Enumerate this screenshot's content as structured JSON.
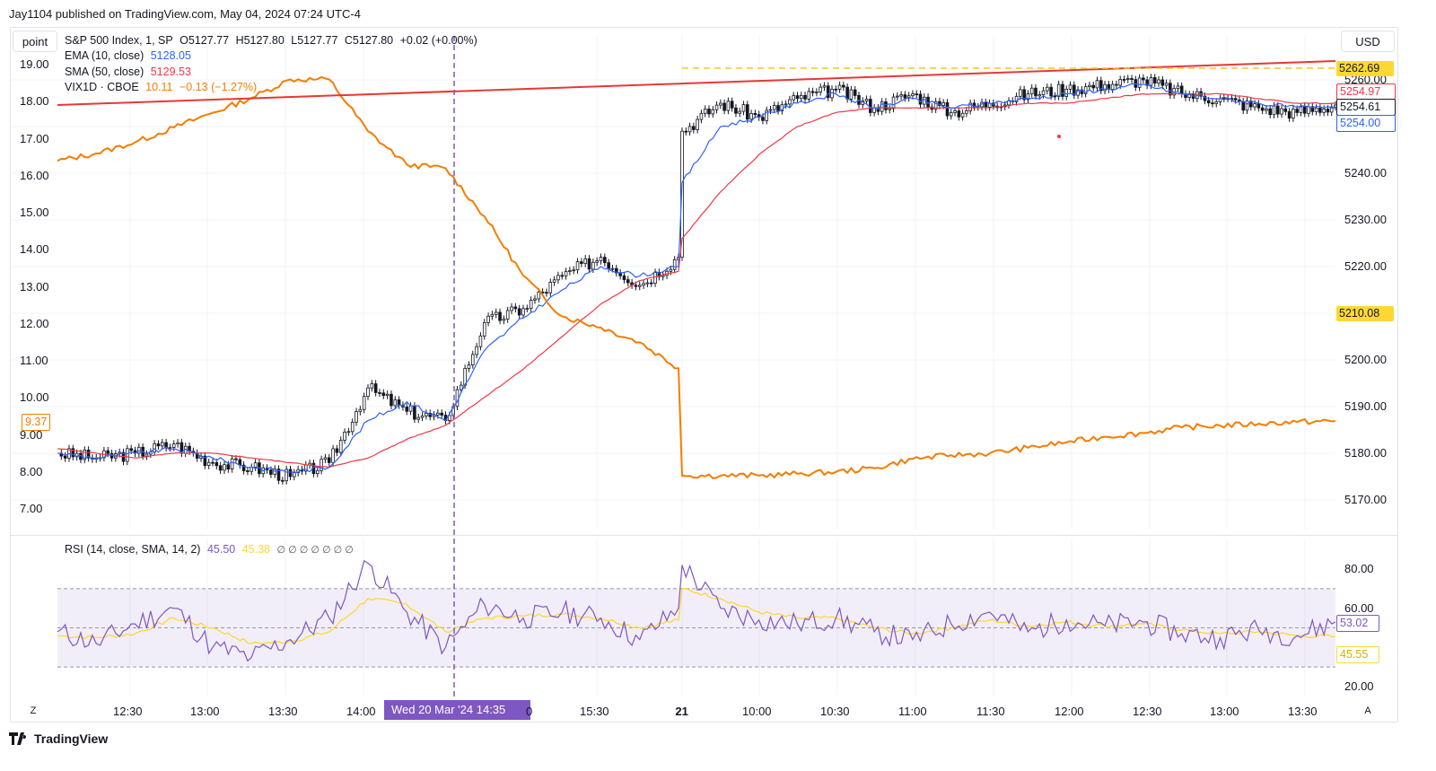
{
  "header": {
    "publish_line": "Jay1104 published on TradingView.com, May 04, 2024 07:24 UTC-4"
  },
  "toolbar": {
    "scale_left_button": "point",
    "currency_button": "USD",
    "zoom_left": "Z",
    "auto_right": "A"
  },
  "legend": {
    "symbol_line": "S&P 500 Index, 1, SP",
    "ohlc": {
      "open": "O5127.77",
      "high": "H5127.80",
      "low": "L5127.77",
      "close": "C5127.80",
      "change": "+0.02 (+0.00%)"
    },
    "ema": {
      "label": "EMA (10, close)",
      "value": "5128.05",
      "color": "#2962ff"
    },
    "sma": {
      "label": "SMA (50, close)",
      "value": "5129.53",
      "color": "#f23645"
    },
    "vix": {
      "label": "VIX1D · CBOE",
      "value": "10.11",
      "change": "−0.13 (−1.27%)",
      "color": "#f57c00"
    },
    "rsi": {
      "label": "RSI (14, close, SMA, 14, 2)",
      "value": "45.50",
      "smoothed": "45.38",
      "extras": "∅ ∅ ∅ ∅ ∅ ∅ ∅",
      "color": "#7e57c2",
      "sma_color": "#fdd835"
    }
  },
  "left_axis": {
    "ticks": [
      "19.00",
      "18.00",
      "17.00",
      "16.00",
      "15.00",
      "14.00",
      "13.00",
      "12.00",
      "11.00",
      "10.00",
      "9.00",
      "8.00",
      "7.00"
    ],
    "current_tag": "9.37"
  },
  "right_axis": {
    "ticks": [
      "5260.00",
      "5250.00",
      "5240.00",
      "5230.00",
      "5220.00",
      "5210.00",
      "5200.00",
      "5190.00",
      "5180.00",
      "5170.00"
    ],
    "tags": {
      "resistance": "5262.69",
      "sma": "5254.97",
      "last": "5254.61",
      "ema": "5254.00",
      "level": "5210.08"
    }
  },
  "rsi_axis": {
    "ticks": [
      "80.00",
      "60.00",
      "20.00"
    ],
    "tags": {
      "rsi": "53.02",
      "rsi_sma": "45.55"
    }
  },
  "time_axis": {
    "ticks": [
      "12:30",
      "13:00",
      "13:30",
      "14:00",
      "15:30",
      "21",
      "10:00",
      "10:30",
      "11:00",
      "11:30",
      "12:00",
      "12:30",
      "13:00",
      "13:30"
    ],
    "cursor_label": "Wed 20 Mar '24   14:35",
    "cursor_tail": "0"
  },
  "chart_data": [
    {
      "type": "line",
      "title": "S&P 500 Index, 1, SP",
      "x": [
        "20 Mar 12:20",
        "12:30",
        "12:45",
        "13:00",
        "13:15",
        "13:30",
        "13:45",
        "14:00",
        "14:05",
        "14:20",
        "14:35",
        "14:50",
        "15:00",
        "15:15",
        "15:30",
        "15:45",
        "15:58",
        "21 Mar 09:31",
        "09:45",
        "10:00",
        "10:15",
        "10:30",
        "10:45",
        "11:00",
        "11:15",
        "11:30",
        "11:45",
        "12:00",
        "12:15",
        "12:30",
        "12:45",
        "13:00",
        "13:15",
        "13:30",
        "13:40"
      ],
      "series": [
        {
          "name": "S&P 500 Index",
          "values": [
            5180,
            5179,
            5180,
            5182,
            5178,
            5177,
            5175,
            5178,
            5194,
            5189,
            5187,
            5208,
            5211,
            5218,
            5222,
            5216,
            5222,
            5249,
            5255,
            5252,
            5256,
            5258,
            5254,
            5257,
            5253,
            5255,
            5257,
            5258,
            5259,
            5260,
            5257,
            5256,
            5254,
            5253,
            5254.6
          ]
        },
        {
          "name": "EMA (10, close)",
          "values": [
            5180,
            5179,
            5180,
            5181,
            5179,
            5177,
            5176,
            5177,
            5187,
            5191,
            5187,
            5202,
            5209,
            5215,
            5220,
            5218,
            5220,
            5238,
            5250,
            5252,
            5255,
            5257,
            5254,
            5256,
            5254,
            5255,
            5256,
            5257,
            5258,
            5259,
            5257,
            5256,
            5255,
            5254,
            5254
          ]
        },
        {
          "name": "SMA (50, close)",
          "values": [
            5181,
            5180,
            5179,
            5180,
            5180,
            5179,
            5178,
            5177,
            5179,
            5183,
            5186,
            5192,
            5198,
            5205,
            5212,
            5217,
            5219,
            5226,
            5236,
            5244,
            5250,
            5253,
            5254,
            5254,
            5254,
            5254,
            5255,
            5255,
            5256,
            5257,
            5257,
            5257,
            5256,
            5255,
            5255
          ]
        }
      ],
      "y_axis": {
        "side": "right",
        "ylim": [
          5165,
          5268
        ]
      },
      "annotations": [
        "resistance line",
        "dashed level 5262.69",
        "vertical cursor Wed 20 Mar '24 14:35"
      ]
    },
    {
      "type": "line",
      "title": "VIX1D · CBOE",
      "x": [
        "20 Mar 12:20",
        "12:30",
        "12:45",
        "13:00",
        "13:15",
        "13:30",
        "13:45",
        "14:00",
        "14:05",
        "14:20",
        "14:35",
        "14:50",
        "15:00",
        "15:15",
        "15:30",
        "15:45",
        "15:58",
        "21 Mar 09:31",
        "09:45",
        "10:00",
        "10:15",
        "10:30",
        "10:45",
        "11:00",
        "11:15",
        "11:30",
        "11:45",
        "12:00",
        "12:15",
        "12:30",
        "12:45",
        "13:00",
        "13:15",
        "13:30",
        "13:40"
      ],
      "series": [
        {
          "name": "VIX1D",
          "values": [
            16.4,
            16.6,
            16.9,
            17.3,
            17.7,
            18.1,
            18.6,
            18.6,
            17.2,
            16.3,
            16.2,
            14.9,
            13.3,
            12.2,
            11.9,
            11.5,
            10.8,
            7.9,
            7.9,
            7.9,
            7.95,
            8.0,
            8.1,
            8.35,
            8.45,
            8.5,
            8.65,
            8.8,
            8.95,
            9.05,
            9.2,
            9.25,
            9.3,
            9.35,
            9.37
          ]
        }
      ],
      "y_axis": {
        "side": "left",
        "ylim": [
          6.5,
          19.5
        ]
      }
    },
    {
      "type": "line",
      "title": "RSI (14, close, SMA, 14, 2)",
      "x": [
        "20 Mar 12:20",
        "12:30",
        "12:45",
        "13:00",
        "13:15",
        "13:30",
        "13:45",
        "14:00",
        "14:05",
        "14:20",
        "14:35",
        "14:50",
        "15:00",
        "15:15",
        "15:30",
        "15:45",
        "15:58",
        "21 Mar 09:31",
        "09:45",
        "10:00",
        "10:15",
        "10:30",
        "10:45",
        "11:00",
        "11:15",
        "11:30",
        "11:45",
        "12:00",
        "12:15",
        "12:30",
        "12:45",
        "13:00",
        "13:15",
        "13:30",
        "13:40"
      ],
      "series": [
        {
          "name": "RSI",
          "values": [
            48,
            42,
            52,
            60,
            40,
            35,
            44,
            55,
            83,
            58,
            40,
            62,
            55,
            58,
            55,
            44,
            60,
            82,
            60,
            54,
            52,
            55,
            48,
            44,
            52,
            58,
            48,
            54,
            51,
            53,
            47,
            45,
            49,
            46,
            53.02
          ]
        },
        {
          "name": "RSI SMA",
          "values": [
            46,
            45,
            47,
            55,
            50,
            42,
            43,
            48,
            65,
            62,
            48,
            55,
            56,
            57,
            55,
            50,
            54,
            70,
            65,
            58,
            55,
            55,
            50,
            47,
            50,
            54,
            51,
            53,
            51,
            52,
            49,
            47,
            48,
            46,
            45.55
          ]
        }
      ],
      "bands": [
        70,
        50,
        30
      ],
      "ylim": [
        15,
        92
      ]
    }
  ]
}
